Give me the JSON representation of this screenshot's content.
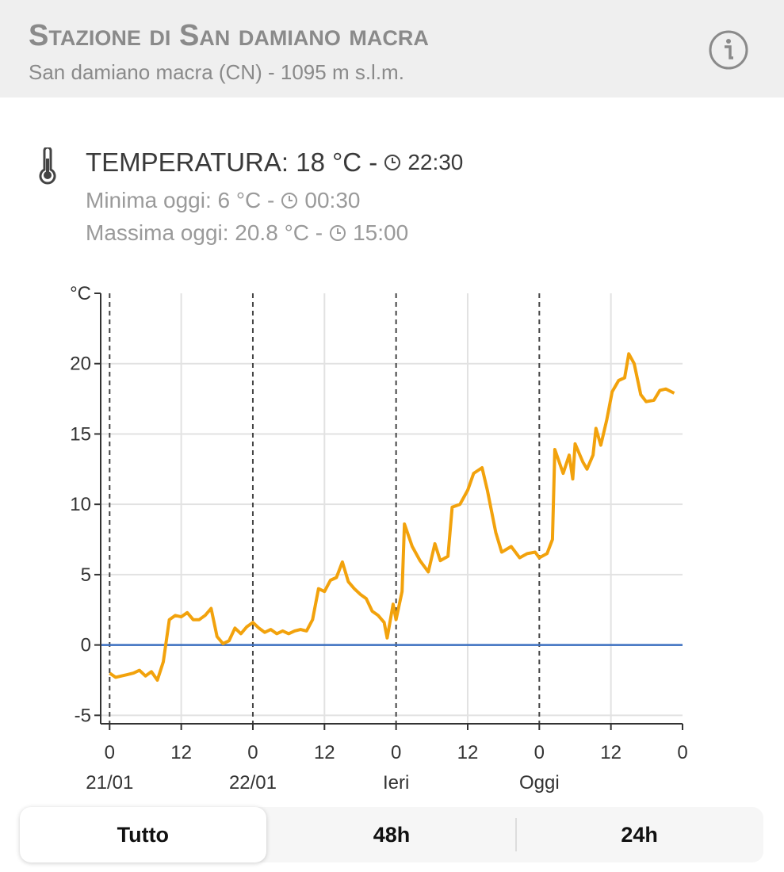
{
  "header": {
    "title": "Stazione di San damiano macra",
    "subtitle": "San damiano macra (CN) - 1095 m s.l.m."
  },
  "current": {
    "label": "TEMPERATURA: 18 °C -",
    "time": "22:30"
  },
  "minimum": {
    "label": "Minima oggi: 6 °C -",
    "time": "00:30"
  },
  "maximum": {
    "label": "Massima oggi: 20.8 °C -",
    "time": "15:00"
  },
  "chart_data": {
    "type": "line",
    "color": "#f2a20c",
    "x": [
      0,
      1,
      2,
      3,
      4,
      5,
      6,
      7,
      8,
      9,
      10,
      11,
      12,
      13,
      14,
      15,
      16,
      17,
      18,
      19,
      20,
      21,
      22,
      23,
      24,
      25,
      26,
      27,
      28,
      29,
      30,
      31,
      32,
      33,
      34,
      35,
      36,
      37,
      38,
      39,
      40,
      41,
      42,
      43,
      44,
      45,
      46,
      46.5,
      47.5,
      48,
      49,
      49.4,
      50.7,
      52,
      53.4,
      54.5,
      55.4,
      56.7,
      57.4,
      58.7,
      60,
      61,
      62.4,
      63.3,
      64.7,
      65.7,
      67.3,
      68.7,
      70,
      71.3,
      72,
      73.3,
      74.2,
      74.6,
      76,
      77,
      77.6,
      78,
      79.3,
      80,
      81,
      81.5,
      82.3,
      83.3,
      84.2,
      85.3,
      86.3,
      87,
      87.9,
      89,
      89.9,
      91.2,
      92.2,
      93.2,
      94.6
    ],
    "values": [
      -2.0,
      -2.3,
      -2.2,
      -2.1,
      -2.0,
      -1.8,
      -2.2,
      -1.9,
      -2.5,
      -1.2,
      1.8,
      2.1,
      2.0,
      2.3,
      1.8,
      1.8,
      2.1,
      2.6,
      0.6,
      0.1,
      0.3,
      1.2,
      0.8,
      1.3,
      1.6,
      1.2,
      0.9,
      1.1,
      0.8,
      1.0,
      0.8,
      1.0,
      1.1,
      1.0,
      1.8,
      4.0,
      3.8,
      4.6,
      4.8,
      5.9,
      4.5,
      4.0,
      3.6,
      3.3,
      2.4,
      2.1,
      1.6,
      0.5,
      2.9,
      1.8,
      3.8,
      8.6,
      7.0,
      6.0,
      5.2,
      7.2,
      6.0,
      6.3,
      9.8,
      10.0,
      11.0,
      12.2,
      12.6,
      11.0,
      8.0,
      6.6,
      7.0,
      6.2,
      6.5,
      6.6,
      6.2,
      6.5,
      7.5,
      13.9,
      12.2,
      13.5,
      11.8,
      14.3,
      13.0,
      12.5,
      13.5,
      15.4,
      14.2,
      16.0,
      18.0,
      18.8,
      19.0,
      20.7,
      20.0,
      17.8,
      17.3,
      17.4,
      18.1,
      18.2,
      17.9
    ],
    "xlim": [
      -1.5,
      96
    ],
    "ylim": [
      -5.6,
      25
    ],
    "xticks": [
      0,
      12,
      {
        "value": 24,
        "label": "0"
      },
      {
        "value": 36,
        "label": "12"
      },
      {
        "value": 48,
        "label": "0"
      },
      {
        "value": 60,
        "label": "12"
      },
      {
        "value": 72,
        "label": "0"
      },
      {
        "value": 84,
        "label": "12"
      },
      {
        "value": 96,
        "label": "0"
      }
    ],
    "day_ticks": [
      {
        "value": 0,
        "label": "21/01"
      },
      {
        "value": 24,
        "label": "22/01"
      },
      {
        "value": 48,
        "label": "Ieri"
      },
      {
        "value": 72,
        "label": "Oggi"
      }
    ],
    "yticks": [
      -5,
      0,
      5,
      10,
      15,
      20,
      {
        "value": 25,
        "label": "°C"
      }
    ],
    "grid": true,
    "reference_line": {
      "value": 0,
      "color": "#3b6fc0"
    }
  },
  "tabs": [
    "Tutto",
    "48h",
    "24h"
  ],
  "selected_tab": 0
}
